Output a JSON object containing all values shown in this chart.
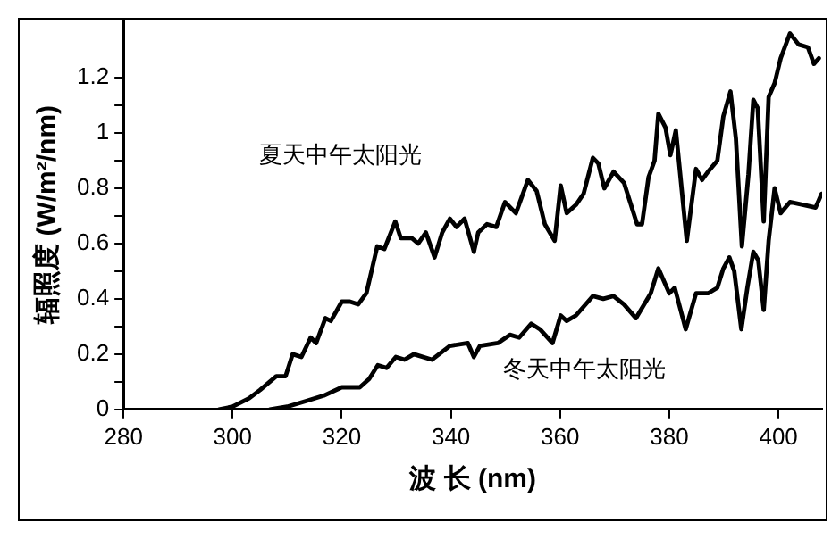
{
  "chart_data": {
    "type": "line",
    "xlabel": "波 长 (nm)",
    "ylabel": "辐照度 (W/m²/nm)",
    "xlim": [
      280,
      408
    ],
    "ylim": [
      0,
      1.41
    ],
    "xticks": [
      280,
      300,
      320,
      340,
      360,
      380,
      400
    ],
    "yticks": [
      0,
      {
        "value": 0.1,
        "label": null
      },
      0.2,
      {
        "value": 0.3,
        "label": null
      },
      0.4,
      {
        "value": 0.5,
        "label": null
      },
      0.6,
      {
        "value": 0.7,
        "label": null
      },
      0.8,
      {
        "value": 0.9,
        "label": null
      },
      1,
      {
        "value": 1.1,
        "label": null
      },
      1.2
    ],
    "grid": false,
    "legend": false,
    "marker": "none",
    "line_style": "solid",
    "series": [
      {
        "name": "夏天中午太阳光",
        "color": "#000000",
        "x": [
          297.5,
          300,
          303,
          305,
          308,
          309.7,
          311,
          312.6,
          314.3,
          315.3,
          317,
          318,
          320,
          321.5,
          323,
          324.5,
          326.5,
          327.8,
          329.8,
          330.8,
          332.8,
          334,
          335.4,
          337,
          338.4,
          339.8,
          341,
          342.5,
          344.2,
          345,
          346.6,
          348.3,
          349.9,
          351.9,
          354.1,
          355.7,
          357.2,
          359,
          360.1,
          361.2,
          362.9,
          364.3,
          366,
          367,
          368.1,
          369.8,
          371.7,
          374.1,
          375,
          376.2,
          377.3,
          378,
          379.3,
          380.2,
          381.2,
          383.2,
          384.9,
          386,
          387.1,
          388.8,
          389.9,
          391.2,
          392.2,
          393.3,
          394.5,
          395.4,
          396.2,
          397.3,
          398.2,
          399.3,
          400.4,
          402.1,
          403.7,
          405.4,
          406.5,
          407.4
        ],
        "values": [
          0,
          0.01,
          0.04,
          0.07,
          0.12,
          0.12,
          0.2,
          0.19,
          0.26,
          0.24,
          0.33,
          0.32,
          0.39,
          0.39,
          0.38,
          0.42,
          0.59,
          0.58,
          0.68,
          0.62,
          0.62,
          0.6,
          0.64,
          0.55,
          0.64,
          0.69,
          0.66,
          0.69,
          0.57,
          0.64,
          0.67,
          0.66,
          0.75,
          0.71,
          0.83,
          0.79,
          0.67,
          0.61,
          0.81,
          0.71,
          0.74,
          0.78,
          0.91,
          0.89,
          0.8,
          0.86,
          0.82,
          0.67,
          0.67,
          0.84,
          0.9,
          1.07,
          1.02,
          0.92,
          1.01,
          0.61,
          0.87,
          0.83,
          0.86,
          0.9,
          1.06,
          1.15,
          0.98,
          0.59,
          0.85,
          1.12,
          1.09,
          0.68,
          1.13,
          1.18,
          1.27,
          1.36,
          1.32,
          1.31,
          1.25,
          1.27
        ]
      },
      {
        "name": "冬天中午太阳光",
        "color": "#000000",
        "x": [
          306.8,
          310,
          313.4,
          316.7,
          320,
          323.3,
          325,
          326.6,
          328.2,
          329.9,
          331.5,
          333.2,
          336.5,
          339.8,
          343.1,
          344.2,
          345.3,
          348.6,
          350.8,
          352.5,
          354.7,
          356.3,
          358.6,
          360.1,
          361.2,
          362.9,
          366,
          367.9,
          369.8,
          371.7,
          373.9,
          376.6,
          378,
          380,
          381,
          383,
          384.9,
          387.1,
          388.8,
          389.9,
          391,
          391.9,
          393.2,
          394.3,
          395.4,
          396.3,
          397.3,
          398.2,
          399.3,
          400.4,
          402.1,
          404.6,
          406.8,
          407.9
        ],
        "values": [
          0,
          0.01,
          0.03,
          0.05,
          0.08,
          0.08,
          0.11,
          0.16,
          0.15,
          0.19,
          0.18,
          0.2,
          0.18,
          0.23,
          0.24,
          0.19,
          0.23,
          0.24,
          0.27,
          0.26,
          0.31,
          0.29,
          0.24,
          0.34,
          0.32,
          0.34,
          0.41,
          0.4,
          0.41,
          0.38,
          0.33,
          0.42,
          0.51,
          0.42,
          0.44,
          0.29,
          0.42,
          0.42,
          0.44,
          0.51,
          0.55,
          0.5,
          0.29,
          0.44,
          0.57,
          0.54,
          0.36,
          0.61,
          0.8,
          0.71,
          0.75,
          0.74,
          0.73,
          0.78
        ]
      }
    ]
  }
}
